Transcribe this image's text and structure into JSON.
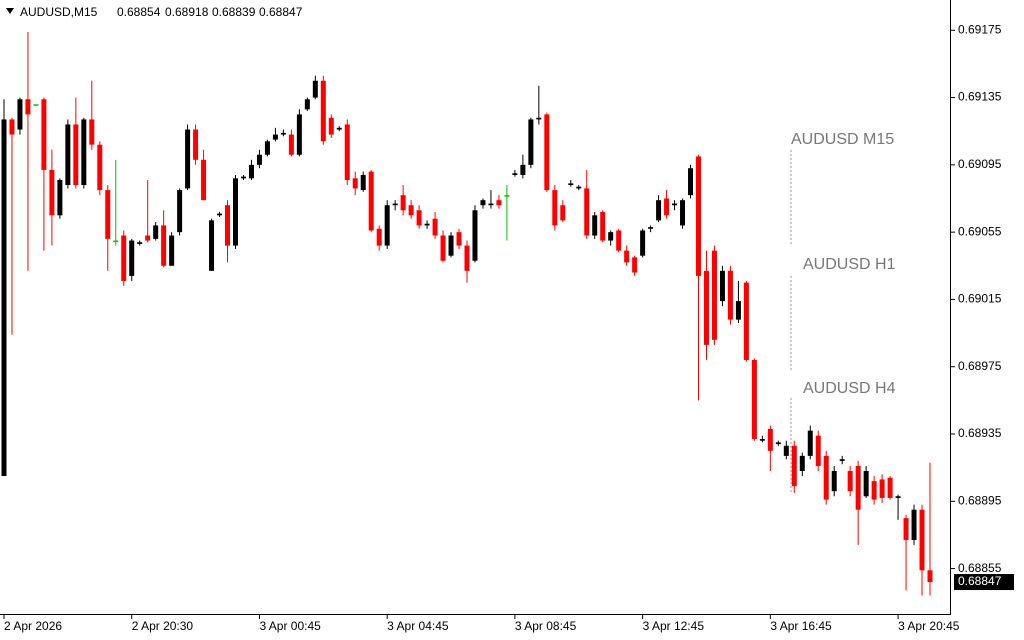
{
  "chart_data": {
    "type": "candlestick",
    "symbol": "AUDUSD,M15",
    "annotations": [
      "AUDUSD M15",
      "AUDUSD H1",
      "AUDUSD H4"
    ],
    "categories": [
      "2 Apr 2026",
      null,
      null,
      null,
      null,
      null,
      null,
      null,
      null,
      null,
      null,
      null,
      null,
      null,
      null,
      null,
      "2 Apr 20:30",
      null,
      null,
      null,
      null,
      null,
      null,
      null,
      null,
      null,
      null,
      null,
      null,
      null,
      null,
      null,
      "3 Apr 00:45",
      null,
      null,
      null,
      null,
      null,
      null,
      null,
      null,
      null,
      null,
      null,
      null,
      null,
      null,
      null,
      "3 Apr 04:45",
      null,
      null,
      null,
      null,
      null,
      null,
      null,
      null,
      null,
      null,
      null,
      null,
      null,
      null,
      null,
      "3 Apr 08:45",
      null,
      null,
      null,
      null,
      null,
      null,
      null,
      null,
      null,
      null,
      null,
      null,
      null,
      null,
      null,
      "3 Apr 12:45",
      null,
      null,
      null,
      null,
      null,
      null,
      null,
      null,
      null,
      null,
      null,
      null,
      null,
      null,
      null,
      "3 Apr 16:45",
      null,
      null,
      null,
      null,
      null,
      null,
      null,
      null,
      null,
      null,
      null,
      null,
      null,
      null,
      null,
      "3 Apr 20:45",
      null,
      null,
      null,
      null
    ],
    "open": [
      0.6891,
      0.69122,
      0.69116,
      0.69134,
      0.69131,
      0.69134,
      0.69092,
      0.69065,
      0.69083,
      0.69119,
      0.69083,
      0.69122,
      0.69107,
      0.6908,
      0.6905,
      0.69053,
      0.69029,
      0.69048,
      0.69053,
      0.69051,
      0.69059,
      0.69035,
      0.69055,
      0.69081,
      0.69116,
      0.69098,
      0.69032,
      0.69065,
      0.69071,
      0.69047,
      0.69087,
      0.69087,
      0.69095,
      0.69101,
      0.6911,
      0.69113,
      0.69113,
      0.69101,
      0.69128,
      0.69135,
      0.69145,
      0.69123,
      0.69116,
      0.69119,
      0.69087,
      0.6908,
      0.69091,
      0.69057,
      0.69047,
      0.69071,
      0.69077,
      0.69071,
      0.69068,
      0.69059,
      0.69063,
      0.69053,
      0.69041,
      0.69055,
      0.69047,
      0.69038,
      0.69071,
      0.69071,
      0.69074,
      0.69077,
      0.69089,
      0.69089,
      0.69095,
      0.69122,
      0.69125,
      0.6908,
      0.69071,
      0.69083,
      0.69081,
      0.69081,
      0.69053,
      0.69067,
      0.6905,
      0.69056,
      0.69044,
      0.6904,
      0.69041,
      0.69057,
      0.69062,
      0.69075,
      0.69071,
      0.69059,
      0.69077,
      0.691,
      0.69032,
      0.69044,
      0.69014,
      0.69032,
      0.69003,
      0.69025,
      0.68979,
      0.68931,
      0.68938,
      0.68929,
      0.68922,
      0.68928,
      0.68913,
      0.68922,
      0.68934,
      0.68922,
      0.68901,
      0.68919,
      0.68913,
      0.68916,
      0.68898,
      0.68907,
      0.68908,
      0.68909,
      0.68897,
      0.68885,
      0.68872,
      0.6889,
      0.68854
    ],
    "high": [
      0.69134,
      0.69123,
      0.69135,
      0.69174,
      0.69131,
      0.69135,
      0.69104,
      0.69087,
      0.69122,
      0.69135,
      0.69123,
      0.69145,
      0.69109,
      0.69083,
      0.69098,
      0.69056,
      0.69051,
      0.6905,
      0.69086,
      0.69061,
      0.69068,
      0.69055,
      0.69081,
      0.69119,
      0.69119,
      0.69104,
      0.69063,
      0.69067,
      0.69074,
      0.69089,
      0.69089,
      0.69098,
      0.69104,
      0.6911,
      0.69117,
      0.69116,
      0.69116,
      0.69128,
      0.69135,
      0.69148,
      0.69148,
      0.69125,
      0.69118,
      0.69122,
      0.69091,
      0.69091,
      0.69092,
      0.69059,
      0.69074,
      0.69074,
      0.69083,
      0.69074,
      0.69071,
      0.69062,
      0.69067,
      0.69056,
      0.69055,
      0.69057,
      0.6905,
      0.69071,
      0.69075,
      0.6908,
      0.69077,
      0.69083,
      0.69092,
      0.69101,
      0.69123,
      0.69142,
      0.69126,
      0.69083,
      0.69074,
      0.69086,
      0.69083,
      0.69092,
      0.69067,
      0.69068,
      0.69056,
      0.69057,
      0.69047,
      0.69041,
      0.69057,
      0.69059,
      0.69077,
      0.6908,
      0.69074,
      0.69075,
      0.69095,
      0.69101,
      0.69044,
      0.69047,
      0.69035,
      0.69035,
      0.69026,
      0.69026,
      0.6898,
      0.68934,
      0.6894,
      0.68931,
      0.68931,
      0.68931,
      0.68924,
      0.6894,
      0.68937,
      0.68925,
      0.68916,
      0.68922,
      0.68916,
      0.68919,
      0.68916,
      0.6891,
      0.68911,
      0.6891,
      0.68899,
      0.68887,
      0.68893,
      0.68893,
      0.68918
    ],
    "low": [
      0.6891,
      0.68994,
      0.69113,
      0.69032,
      0.69131,
      0.69044,
      0.69047,
      0.69063,
      0.69081,
      0.69081,
      0.69081,
      0.69104,
      0.69077,
      0.69032,
      0.69047,
      0.69023,
      0.69026,
      0.69047,
      0.69049,
      0.6905,
      0.69034,
      0.69035,
      0.69053,
      0.6908,
      0.69095,
      0.69074,
      0.69032,
      0.69064,
      0.69037,
      0.69045,
      0.69086,
      0.69086,
      0.69093,
      0.691,
      0.69109,
      0.69112,
      0.691,
      0.691,
      0.69127,
      0.69134,
      0.69107,
      0.69111,
      0.69115,
      0.69083,
      0.69077,
      0.69079,
      0.69055,
      0.69044,
      0.69045,
      0.69068,
      0.69065,
      0.69063,
      0.69057,
      0.69057,
      0.69051,
      0.69037,
      0.6904,
      0.69045,
      0.69025,
      0.69037,
      0.69069,
      0.69069,
      0.69069,
      0.6905,
      0.69088,
      0.69087,
      0.69093,
      0.69119,
      0.69079,
      0.69056,
      0.69061,
      0.69082,
      0.6908,
      0.69051,
      0.69051,
      0.69049,
      0.69047,
      0.69043,
      0.69035,
      0.69029,
      0.6904,
      0.69055,
      0.69061,
      0.69063,
      0.69068,
      0.69057,
      0.69075,
      0.68955,
      0.68979,
      0.68988,
      0.69011,
      0.69,
      0.69001,
      0.68978,
      0.68931,
      0.6893,
      0.68913,
      0.68928,
      0.6892,
      0.689,
      0.6891,
      0.6892,
      0.68913,
      0.68893,
      0.68898,
      0.68917,
      0.68898,
      0.68869,
      0.68897,
      0.68893,
      0.68894,
      0.68896,
      0.68884,
      0.68842,
      0.68869,
      0.68839,
      0.68839
    ],
    "close": [
      0.69122,
      0.69113,
      0.69134,
      0.69125,
      0.69131,
      0.69092,
      0.69065,
      0.69086,
      0.69119,
      0.69083,
      0.69122,
      0.69107,
      0.6908,
      0.69051,
      0.6905,
      0.69026,
      0.6905,
      0.69049,
      0.6905,
      0.69059,
      0.69035,
      0.69053,
      0.6908,
      0.69116,
      0.69098,
      0.69074,
      0.69062,
      0.69066,
      0.69047,
      0.69087,
      0.69088,
      0.69095,
      0.69101,
      0.69109,
      0.69113,
      0.69114,
      0.69101,
      0.69125,
      0.69134,
      0.69145,
      0.69109,
      0.69113,
      0.69117,
      0.69086,
      0.69081,
      0.69089,
      0.69056,
      0.69047,
      0.69071,
      0.69072,
      0.69068,
      0.69065,
      0.69059,
      0.6906,
      0.69053,
      0.69038,
      0.69053,
      0.69047,
      0.69032,
      0.69068,
      0.69074,
      0.69072,
      0.69071,
      0.69077,
      0.6909,
      0.69095,
      0.69122,
      0.69123,
      0.6908,
      0.69059,
      0.69062,
      0.69084,
      0.69082,
      0.69053,
      0.69065,
      0.6905,
      0.69055,
      0.69044,
      0.69037,
      0.69031,
      0.69056,
      0.69058,
      0.69074,
      0.69065,
      0.69072,
      0.69074,
      0.69093,
      0.69029,
      0.68988,
      0.68991,
      0.69032,
      0.69003,
      0.69014,
      0.68979,
      0.68932,
      0.68932,
      0.68925,
      0.6893,
      0.68928,
      0.68904,
      0.68922,
      0.68937,
      0.68916,
      0.68896,
      0.68913,
      0.6892,
      0.68901,
      0.6889,
      0.68913,
      0.68896,
      0.68897,
      0.68897,
      0.68898,
      0.68872,
      0.6889,
      0.68854,
      0.68847
    ],
    "bull_color": "#000000",
    "bear_color": "#ff0000",
    "doji_color": "#00c000",
    "ylim": [
      0.68828,
      0.69193
    ],
    "yticks": [
      0.69175,
      0.69135,
      0.69095,
      0.69055,
      0.69015,
      0.68975,
      0.68935,
      0.68895,
      0.68855
    ],
    "grid": false
  }
}
